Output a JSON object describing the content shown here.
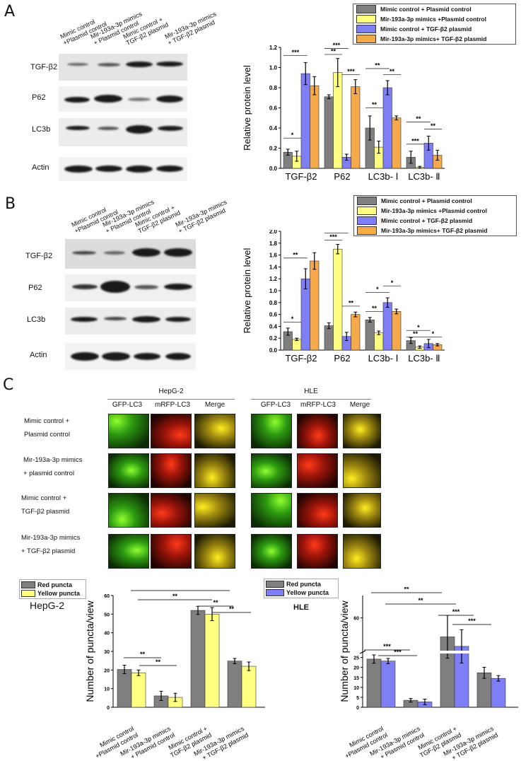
{
  "panels": {
    "A": {
      "letter": "A",
      "lane_labels": [
        [
          "Mimic control",
          "+Plasmid control"
        ],
        [
          "Mir-193a-3p mimics",
          "+ Plasmid control"
        ],
        [
          "Mimic control +",
          "TGF-β2 plasmid"
        ],
        [
          "Mir-193a-3p mimics",
          "+ TGF-β2 plasmid"
        ]
      ],
      "blot_rows": [
        "TGF-β2",
        "P62",
        "LC3b",
        "Actin"
      ]
    },
    "B": {
      "letter": "B",
      "lane_labels": [
        [
          "Mimic control",
          "+Plasmid control"
        ],
        [
          "Mir-193a-3p mimics",
          "+ Plasmid control"
        ],
        [
          "Mimic control +",
          "TGF-β2 plasmid"
        ],
        [
          "Mir-193a-3p mimics",
          "+ TGF-β2 plasmid"
        ]
      ],
      "blot_rows": [
        "TGF-β2",
        "P62",
        "LC3b",
        "Actin"
      ]
    },
    "C": {
      "letter": "C",
      "cell_lines": [
        "HepG-2",
        "HLE"
      ],
      "channels": [
        "GFP-LC3",
        "mRFP-LC3",
        "Merge"
      ],
      "row_labels": [
        [
          "Mimic control +",
          "Plasmid control"
        ],
        [
          "Mir-193a-3p mimics",
          "+ plasmid control"
        ],
        [
          "Mimic control +",
          "TGF-β2 plasmid"
        ],
        [
          "Mir-193a-3p mimics",
          "+ TGF-β2 plasmid"
        ]
      ],
      "hepg2_label": "HepG-2",
      "hle_label": "HLE"
    }
  },
  "colors": {
    "gray": "#7f7f7f",
    "yellow": "#ffff80",
    "blue": "#7f7ff5",
    "orange": "#f5a94a"
  },
  "chart_data": [
    {
      "id": "A-western-quant",
      "type": "bar",
      "title": "",
      "xlabel": "",
      "ylabel": "Relative protein level",
      "ylim": [
        0,
        1.2
      ],
      "yticks": [
        0.0,
        0.2,
        0.4,
        0.6,
        0.8,
        1.0,
        1.2
      ],
      "categories": [
        "TGF-β2",
        "P62",
        "LC3b- Ⅰ",
        "LC3b- Ⅱ"
      ],
      "legend_position": "top-right",
      "series": [
        {
          "name": "Mimic control + Plasmid control",
          "color": "#7f7f7f",
          "values": [
            0.16,
            0.71,
            0.4,
            0.11
          ],
          "errors": [
            0.03,
            0.02,
            0.12,
            0.06
          ]
        },
        {
          "name": "Mir-193a-3p mimics +Plasmid control",
          "color": "#ffff80",
          "values": [
            0.12,
            0.95,
            0.21,
            0.01
          ],
          "errors": [
            0.05,
            0.14,
            0.06,
            0.01
          ]
        },
        {
          "name": "Mimic control + TGF-β2 plasmid",
          "color": "#7f7ff5",
          "values": [
            0.94,
            0.11,
            0.8,
            0.25
          ],
          "errors": [
            0.11,
            0.03,
            0.07,
            0.07
          ]
        },
        {
          "name": "Mir-193a-3p mimics+ TGF-β2 plasmid",
          "color": "#f5a94a",
          "values": [
            0.82,
            0.81,
            0.5,
            0.13
          ],
          "errors": [
            0.09,
            0.07,
            0.02,
            0.05
          ]
        }
      ],
      "significance": [
        {
          "cat": 0,
          "from": 0,
          "to": 1,
          "label": "*",
          "y": 0.3
        },
        {
          "cat": 0,
          "from": 0,
          "to": 2,
          "label": "***",
          "y": 1.12
        },
        {
          "cat": 1,
          "from": 0,
          "to": 1,
          "label": "**",
          "y": 1.13
        },
        {
          "cat": 1,
          "from": 0,
          "to": 2,
          "label": "***",
          "y": 1.19
        },
        {
          "cat": 1,
          "from": 2,
          "to": 3,
          "label": "***",
          "y": 0.93
        },
        {
          "cat": 2,
          "from": 0,
          "to": 1,
          "label": "**",
          "y": 0.6
        },
        {
          "cat": 2,
          "from": 0,
          "to": 2,
          "label": "**",
          "y": 0.99
        },
        {
          "cat": 2,
          "from": 2,
          "to": 3,
          "label": "**",
          "y": 0.93
        },
        {
          "cat": 3,
          "from": 0,
          "to": 1,
          "label": "***",
          "y": 0.24
        },
        {
          "cat": 3,
          "from": 0,
          "to": 2,
          "label": "**",
          "y": 0.46
        },
        {
          "cat": 3,
          "from": 2,
          "to": 3,
          "label": "**",
          "y": 0.39
        }
      ]
    },
    {
      "id": "B-western-quant",
      "type": "bar",
      "title": "",
      "xlabel": "",
      "ylabel": "Relative protein level",
      "ylim": [
        0,
        2.0
      ],
      "yticks": [
        0.0,
        0.2,
        0.4,
        0.6,
        0.8,
        1.0,
        1.2,
        1.4,
        1.6,
        1.8,
        2.0
      ],
      "categories": [
        "TGF-β2",
        "P62",
        "LC3b- Ⅰ",
        "LC3b- Ⅱ"
      ],
      "legend_position": "top-right",
      "series": [
        {
          "name": "Mimic control + Plasmid control",
          "color": "#7f7f7f",
          "values": [
            0.31,
            0.41,
            0.51,
            0.16
          ],
          "errors": [
            0.06,
            0.05,
            0.04,
            0.05
          ]
        },
        {
          "name": "Mir-193a-3p mimics +Plasmid control",
          "color": "#ffff80",
          "values": [
            0.18,
            1.7,
            0.29,
            0.05
          ],
          "errors": [
            0.02,
            0.08,
            0.03,
            0.02
          ]
        },
        {
          "name": "Mimic control + TGF-β2 plasmid",
          "color": "#7f7ff5",
          "values": [
            1.2,
            0.23,
            0.8,
            0.11
          ],
          "errors": [
            0.17,
            0.07,
            0.08,
            0.07
          ]
        },
        {
          "name": "Mir-193a-3p mimics+ TGF-β2 plasmid",
          "color": "#f5a94a",
          "values": [
            1.5,
            0.6,
            0.65,
            0.09
          ],
          "errors": [
            0.14,
            0.04,
            0.04,
            0.02
          ]
        }
      ],
      "significance": [
        {
          "cat": 0,
          "from": 0,
          "to": 1,
          "label": "*",
          "y": 0.47
        },
        {
          "cat": 0,
          "from": 0,
          "to": 2,
          "label": "**",
          "y": 1.55
        },
        {
          "cat": 1,
          "from": 0,
          "to": 1,
          "label": "***",
          "y": 1.85
        },
        {
          "cat": 1,
          "from": 0,
          "to": 2,
          "label": "*",
          "y": 1.97
        },
        {
          "cat": 1,
          "from": 2,
          "to": 3,
          "label": "**",
          "y": 0.74
        },
        {
          "cat": 2,
          "from": 0,
          "to": 1,
          "label": "**",
          "y": 0.65
        },
        {
          "cat": 2,
          "from": 0,
          "to": 2,
          "label": "*",
          "y": 0.97
        },
        {
          "cat": 2,
          "from": 2,
          "to": 3,
          "label": "*",
          "y": 1.08
        },
        {
          "cat": 3,
          "from": 0,
          "to": 1,
          "label": "**",
          "y": 0.22
        },
        {
          "cat": 3,
          "from": 0,
          "to": 2,
          "label": "*",
          "y": 0.33
        },
        {
          "cat": 3,
          "from": 2,
          "to": 3,
          "label": "*",
          "y": 0.22
        }
      ]
    },
    {
      "id": "C-HepG2-puncta",
      "type": "bar",
      "title": "HepG-2",
      "xlabel": "",
      "ylabel": "Number of puncta/view",
      "ylim": [
        0,
        60
      ],
      "yticks": [
        0,
        10,
        20,
        30,
        40,
        50,
        60
      ],
      "categories": [
        "Mimic control +Plasmid control",
        "Mir-193a-3p mimics + Plasmid control",
        "Mimic control + TGF-β2 plasmid",
        "Mir-193a-3p mimics + TGF-β2 plasmid"
      ],
      "legend_position": "top-left",
      "series": [
        {
          "name": "Red puncta",
          "color": "#7f7f7f",
          "values": [
            20.3,
            6.1,
            52.0,
            24.8
          ],
          "errors": [
            2.3,
            2.5,
            2.2,
            1.4
          ]
        },
        {
          "name": "Yellow puncta",
          "color": "#ffff80",
          "values": [
            18.5,
            5.3,
            50.0,
            22.0
          ],
          "errors": [
            1.5,
            2.2,
            3.5,
            2.3
          ]
        }
      ],
      "significance": [
        {
          "from": [
            0,
            0
          ],
          "to": [
            1,
            0
          ],
          "label": "**",
          "y": 27
        },
        {
          "from": [
            0,
            1
          ],
          "to": [
            1,
            1
          ],
          "label": "**",
          "y": 23.5
        },
        {
          "from": [
            0,
            0
          ],
          "to": [
            2,
            0
          ],
          "label": "**",
          "y": 67
        },
        {
          "from": [
            0,
            1
          ],
          "to": [
            2,
            1
          ],
          "label": "**",
          "y": 62
        },
        {
          "from": [
            2,
            0
          ],
          "to": [
            3,
            0
          ],
          "label": "**",
          "y": 59
        },
        {
          "from": [
            2,
            1
          ],
          "to": [
            3,
            1
          ],
          "label": "**",
          "y": 55
        }
      ]
    },
    {
      "id": "C-HLE-puncta",
      "type": "bar",
      "title": "HLE",
      "xlabel": "",
      "ylabel": "Number of puncta/view",
      "ylim": [
        0,
        70
      ],
      "yticks": [
        0,
        5,
        10,
        15,
        20,
        25,
        60
      ],
      "axis_break": [
        27,
        45
      ],
      "categories": [
        "Mimic control +Plasmid control",
        "Mir-193a-3p mimics + Plasmid control",
        "Mimic control + TGF-β2 plasmid",
        "Mir-193a-3p mimics + TGF-β2 plasmid"
      ],
      "legend_position": "top-left",
      "series": [
        {
          "name": "Red puncta",
          "color": "#7f7f7f",
          "values": [
            24.2,
            3.5,
            52.0,
            17.3
          ],
          "errors": [
            2.1,
            0.9,
            9.0,
            2.8
          ]
        },
        {
          "name": "Yellow puncta",
          "color": "#7f7ff5",
          "values": [
            23.2,
            2.7,
            48.0,
            14.5
          ],
          "errors": [
            1.3,
            1.4,
            7.0,
            1.4
          ]
        }
      ],
      "significance": [
        {
          "from": [
            0,
            0
          ],
          "to": [
            1,
            0
          ],
          "label": "***",
          "y": "break-low"
        },
        {
          "from": [
            0,
            1
          ],
          "to": [
            1,
            1
          ],
          "label": "***",
          "y": "break-low"
        },
        {
          "from": [
            0,
            0
          ],
          "to": [
            2,
            0
          ],
          "label": "**",
          "y": "top"
        },
        {
          "from": [
            0,
            1
          ],
          "to": [
            2,
            1
          ],
          "label": "**",
          "y": "top"
        },
        {
          "from": [
            2,
            0
          ],
          "to": [
            3,
            0
          ],
          "label": "***",
          "y": "top"
        },
        {
          "from": [
            2,
            1
          ],
          "to": [
            3,
            1
          ],
          "label": "***",
          "y": "top"
        }
      ]
    }
  ]
}
